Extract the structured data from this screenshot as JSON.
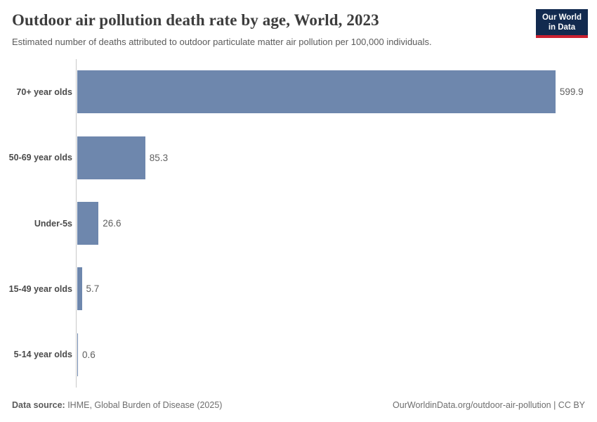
{
  "header": {
    "title": "Outdoor air pollution death rate by age, World, 2023",
    "subtitle": "Estimated number of deaths attributed to outdoor particulate matter air pollution per 100,000 individuals.",
    "logo": {
      "line1": "Our World",
      "line2": "in Data"
    }
  },
  "chart_data": {
    "type": "bar",
    "orientation": "horizontal",
    "title": "Outdoor air pollution death rate by age, World, 2023",
    "subtitle": "Estimated number of deaths attributed to outdoor particulate matter air pollution per 100,000 individuals.",
    "categories": [
      "70+ year olds",
      "50-69 year olds",
      "Under-5s",
      "15-49 year olds",
      "5-14 year olds"
    ],
    "values": [
      599.9,
      85.3,
      26.6,
      5.7,
      0.6
    ],
    "value_labels": [
      "599.9",
      "85.3",
      "26.6",
      "5.7",
      "0.6"
    ],
    "xlim": [
      0,
      600
    ],
    "grid": false,
    "legend": "none",
    "bar_color": "#6e87ad"
  },
  "footer": {
    "source_label": "Data source:",
    "source_value": " IHME, Global Burden of Disease (2025)",
    "credit": "OurWorldinData.org/outdoor-air-pollution | CC BY"
  },
  "colors": {
    "bar": "#6e87ad",
    "axis": "#c9c9c9",
    "logo_bg": "#122a4f",
    "logo_red": "#cb2030",
    "title_text": "#3d3d3d",
    "subtitle_text": "#5b5b5b"
  }
}
